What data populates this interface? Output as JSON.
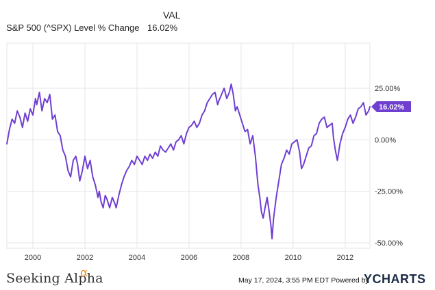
{
  "legend": {
    "column_header": "VAL",
    "series_name": "S&P 500 (^SPX) Level % Change",
    "series_value": "16.02%"
  },
  "footer": {
    "brand": "Seeking Alpha",
    "brand_mark": "α",
    "timestamp": "May 17, 2024, 3:55 PM EDT",
    "powered_by": "Powered by",
    "provider": "YCHARTS"
  },
  "colors": {
    "line": "#6f3fd0",
    "grid": "#e6e6e6",
    "badge": "#6f3fd0"
  },
  "chart_data": {
    "type": "line",
    "title": "",
    "xlabel": "",
    "ylabel": "",
    "xlim": [
      1999.0,
      2012.95
    ],
    "ylim": [
      -50,
      25
    ],
    "x_ticks": [
      2000,
      2002,
      2004,
      2006,
      2008,
      2010,
      2012
    ],
    "x_tick_labels": [
      "2000",
      "2002",
      "2004",
      "2006",
      "2008",
      "2010",
      "2012"
    ],
    "y_ticks": [
      25,
      0,
      -25,
      -50
    ],
    "y_tick_labels": [
      "25.00%",
      "0.00%",
      "-25.00%",
      "-50.00%"
    ],
    "grid": true,
    "end_label": "16.02%",
    "series": [
      {
        "name": "S&P 500 (^SPX) Level % Change",
        "x": [
          1999.0,
          1999.1,
          1999.2,
          1999.3,
          1999.4,
          1999.5,
          1999.6,
          1999.7,
          1999.8,
          1999.9,
          2000.0,
          2000.1,
          2000.15,
          2000.25,
          2000.35,
          2000.45,
          2000.55,
          2000.65,
          2000.75,
          2000.85,
          2000.95,
          2001.05,
          2001.15,
          2001.25,
          2001.35,
          2001.45,
          2001.55,
          2001.65,
          2001.72,
          2001.8,
          2001.9,
          2002.0,
          2002.1,
          2002.2,
          2002.3,
          2002.4,
          2002.5,
          2002.55,
          2002.62,
          2002.7,
          2002.78,
          2002.85,
          2002.95,
          2003.05,
          2003.15,
          2003.2,
          2003.3,
          2003.4,
          2003.5,
          2003.6,
          2003.7,
          2003.8,
          2003.9,
          2004.0,
          2004.1,
          2004.2,
          2004.3,
          2004.4,
          2004.5,
          2004.6,
          2004.7,
          2004.8,
          2004.9,
          2005.0,
          2005.1,
          2005.2,
          2005.3,
          2005.4,
          2005.5,
          2005.6,
          2005.7,
          2005.8,
          2005.9,
          2006.0,
          2006.1,
          2006.2,
          2006.3,
          2006.4,
          2006.5,
          2006.6,
          2006.7,
          2006.8,
          2006.9,
          2007.0,
          2007.1,
          2007.15,
          2007.25,
          2007.35,
          2007.45,
          2007.55,
          2007.62,
          2007.7,
          2007.78,
          2007.85,
          2007.95,
          2008.05,
          2008.15,
          2008.25,
          2008.35,
          2008.45,
          2008.55,
          2008.65,
          2008.72,
          2008.78,
          2008.85,
          2008.92,
          2009.0,
          2009.08,
          2009.15,
          2009.19,
          2009.25,
          2009.35,
          2009.45,
          2009.55,
          2009.65,
          2009.75,
          2009.85,
          2009.95,
          2010.05,
          2010.15,
          2010.25,
          2010.32,
          2010.4,
          2010.5,
          2010.6,
          2010.7,
          2010.8,
          2010.9,
          2011.0,
          2011.1,
          2011.2,
          2011.3,
          2011.4,
          2011.5,
          2011.55,
          2011.62,
          2011.7,
          2011.8,
          2011.9,
          2012.0,
          2012.1,
          2012.2,
          2012.3,
          2012.4,
          2012.5,
          2012.6,
          2012.7,
          2012.8,
          2012.9,
          2012.95
        ],
        "y": [
          -2,
          5,
          10,
          8,
          14,
          11,
          6,
          13,
          9,
          15,
          12,
          20,
          17,
          23,
          14,
          20,
          18,
          22,
          10,
          12,
          4,
          2,
          -5,
          -8,
          -15,
          -18,
          -10,
          -8,
          -12,
          -20,
          -15,
          -8,
          -14,
          -10,
          -18,
          -22,
          -28,
          -25,
          -30,
          -33,
          -27,
          -29,
          -33,
          -28,
          -31,
          -33,
          -27,
          -22,
          -18,
          -15,
          -13,
          -10,
          -12,
          -8,
          -10,
          -12,
          -8,
          -10,
          -7,
          -9,
          -6,
          -8,
          -3,
          -5,
          -6,
          -4,
          -2,
          -5,
          -1,
          0,
          2,
          -2,
          3,
          6,
          7,
          9,
          6,
          8,
          12,
          14,
          18,
          20,
          22,
          23,
          17,
          19,
          22,
          25,
          20,
          23,
          27,
          22,
          14,
          16,
          12,
          8,
          4,
          5,
          -2,
          2,
          -8,
          -22,
          -28,
          -35,
          -38,
          -33,
          -28,
          -35,
          -42,
          -48,
          -38,
          -28,
          -20,
          -12,
          -9,
          -5,
          -7,
          -2,
          -1,
          0,
          -6,
          -14,
          -12,
          -8,
          -4,
          -3,
          2,
          3,
          8,
          10,
          11,
          6,
          7,
          8,
          1,
          -5,
          -10,
          -2,
          3,
          6,
          10,
          12,
          8,
          11,
          15,
          16,
          18,
          12,
          14,
          16.02
        ]
      }
    ]
  }
}
